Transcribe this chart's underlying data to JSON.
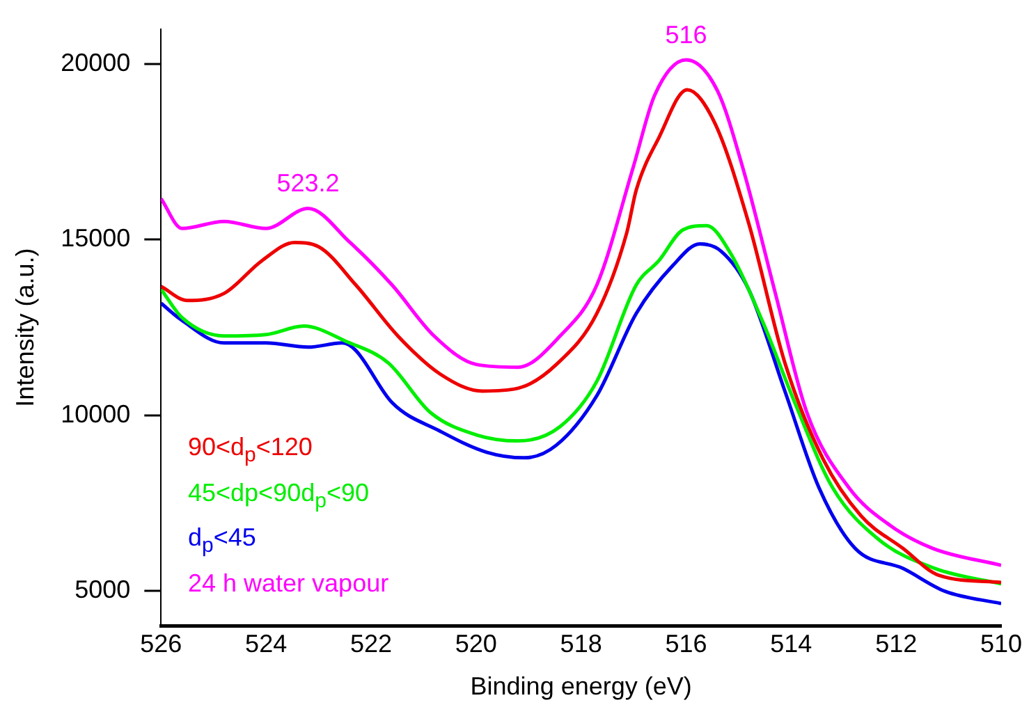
{
  "chart_data": {
    "type": "line",
    "xlabel": "Binding energy (eV)",
    "ylabel": "Intensity (a.u.)",
    "xlim": [
      526,
      510
    ],
    "xticks": [
      526,
      524,
      522,
      520,
      518,
      516,
      514,
      512,
      510
    ],
    "ylim": [
      4000,
      21000
    ],
    "yticks": [
      5000,
      10000,
      15000,
      20000
    ],
    "grid": false,
    "legend": "bottom left",
    "marker": "none",
    "line_style": "solid",
    "annotations": [
      {
        "text": "523.2",
        "x": 523.2,
        "y": 15890
      },
      {
        "text": "516",
        "x": 516,
        "y": 20120
      }
    ],
    "series": [
      {
        "name": "90<d$_{p}$<120",
        "color": "#ee0000",
        "x": [
          526,
          525.5,
          524.8,
          524.08,
          523.46,
          523.0,
          522.29,
          521.49,
          520.68,
          519.88,
          519.2,
          518.47,
          517.7,
          517.13,
          516.95,
          516.52,
          515.98,
          515.45,
          514.81,
          514.11,
          513.39,
          512.67,
          511.87,
          511.18,
          510
        ],
        "values": [
          13670,
          13270,
          13470,
          14400,
          14920,
          14800,
          13710,
          12260,
          11170,
          10690,
          10770,
          11450,
          12900,
          15200,
          16410,
          17900,
          19270,
          18310,
          15480,
          11450,
          8750,
          7140,
          6210,
          5440,
          5240
        ]
      },
      {
        "name": "45<dp<90d$_{p}$<90",
        "color": "#00ee00",
        "x": [
          526,
          525.6,
          524.8,
          524.0,
          523.28,
          522.47,
          521.67,
          520.87,
          519.99,
          519.2,
          518.4,
          517.7,
          516.95,
          516.52,
          516.06,
          515.61,
          515.18,
          514.54,
          513.93,
          513.21,
          512.32,
          511.26,
          510
        ],
        "values": [
          13590,
          12780,
          12260,
          12300,
          12540,
          12100,
          11490,
          10080,
          9440,
          9270,
          9680,
          10970,
          13710,
          14400,
          15280,
          15400,
          14680,
          12660,
          10360,
          7940,
          6450,
          5640,
          5200
        ]
      },
      {
        "name": "d$_{p}$<45",
        "color": "#0000ee",
        "x": [
          526,
          525.6,
          524.8,
          524.0,
          523.2,
          522.55,
          522.3,
          521.6,
          520.7,
          519.8,
          519.08,
          518.47,
          517.7,
          516.95,
          516.25,
          515.74,
          515.34,
          514.81,
          514.11,
          513.47,
          512.78,
          511.87,
          511.07,
          510
        ],
        "values": [
          13190,
          12700,
          12060,
          12060,
          11940,
          12060,
          11860,
          10360,
          9560,
          8950,
          8790,
          9150,
          10560,
          12900,
          14270,
          14880,
          14680,
          13590,
          10650,
          7940,
          6210,
          5640,
          4990,
          4640
        ]
      },
      {
        "name": "24 h water vapour",
        "color": "#ff00ff",
        "x": [
          526,
          525.6,
          524.8,
          524.0,
          523.2,
          522.4,
          521.6,
          520.8,
          520.0,
          519.2,
          518.4,
          517.7,
          517.0,
          516.6,
          516.0,
          515.4,
          514.9,
          514.3,
          513.7,
          512.9,
          512.1,
          511.3,
          510
        ],
        "values": [
          16170,
          15320,
          15520,
          15320,
          15890,
          14920,
          13710,
          12260,
          11450,
          11370,
          12260,
          13710,
          17100,
          19110,
          20120,
          19230,
          16940,
          13470,
          10080,
          7940,
          6850,
          6210,
          5730
        ]
      }
    ]
  }
}
